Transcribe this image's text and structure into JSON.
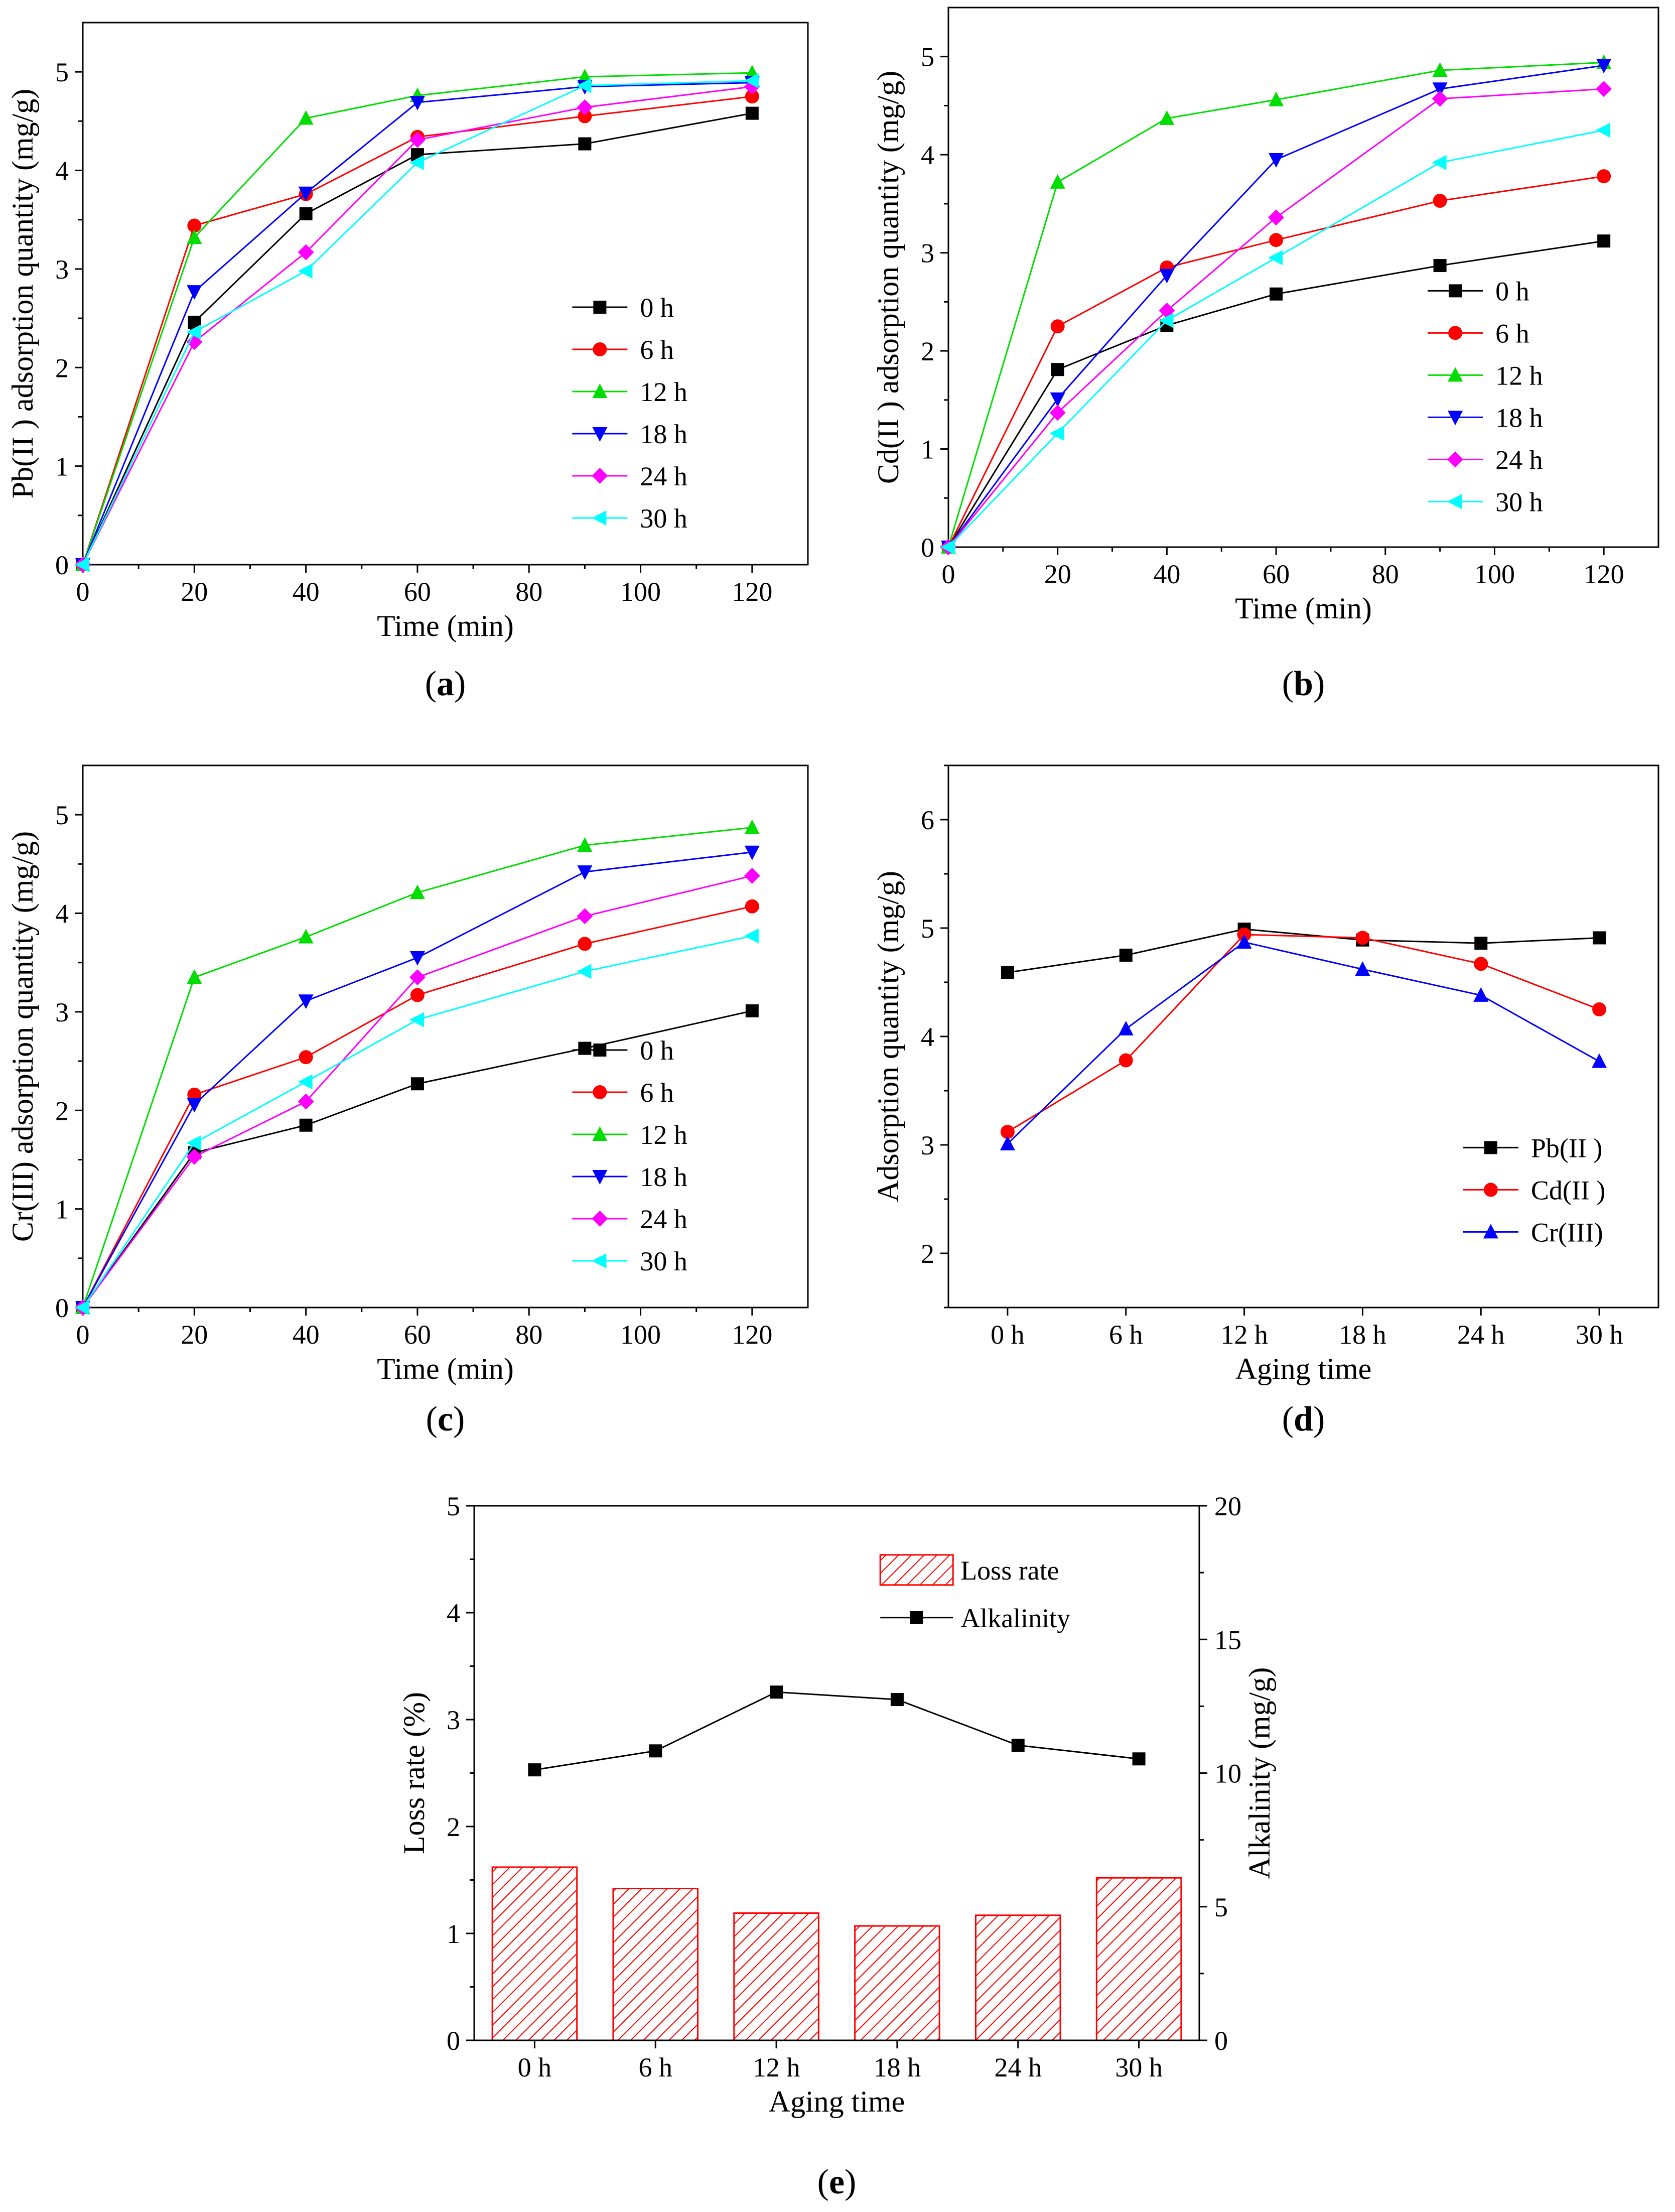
{
  "figure": {
    "captions": [
      "(a)",
      "(b)",
      "(c)",
      "(d)",
      "(e)"
    ]
  },
  "chart_data": [
    {
      "id": "a",
      "type": "line",
      "caption": "(a)",
      "xlabel": "Time (min)",
      "ylabel": "Pb(II ) adsorption quantity (mg/g)",
      "xlim": [
        0,
        130
      ],
      "ylim": [
        0,
        5.5
      ],
      "xticks": [
        0,
        20,
        40,
        60,
        80,
        100,
        120
      ],
      "yticks": [
        0,
        1,
        2,
        3,
        4,
        5
      ],
      "x": [
        0,
        20,
        40,
        60,
        90,
        120
      ],
      "legend_position": "lower-right",
      "series": [
        {
          "name": "0 h",
          "color": "#000000",
          "marker": "square",
          "values": [
            0,
            2.46,
            3.56,
            4.16,
            4.27,
            4.58
          ]
        },
        {
          "name": "6 h",
          "color": "#ff0000",
          "marker": "circle",
          "values": [
            0,
            3.44,
            3.76,
            4.34,
            4.55,
            4.75
          ]
        },
        {
          "name": "12 h",
          "color": "#00dd00",
          "marker": "triangle-up",
          "values": [
            0,
            3.32,
            4.53,
            4.76,
            4.95,
            4.99
          ]
        },
        {
          "name": "18 h",
          "color": "#0000ff",
          "marker": "triangle-down",
          "values": [
            0,
            2.77,
            3.77,
            4.69,
            4.85,
            4.89
          ]
        },
        {
          "name": "24 h",
          "color": "#ff00ff",
          "marker": "diamond",
          "values": [
            0,
            2.26,
            3.17,
            4.31,
            4.64,
            4.85
          ]
        },
        {
          "name": "30 h",
          "color": "#00ffff",
          "marker": "triangle-left",
          "values": [
            0,
            2.36,
            2.98,
            4.08,
            4.86,
            4.91
          ]
        }
      ]
    },
    {
      "id": "b",
      "type": "line",
      "caption": "(b)",
      "xlabel": "Time (min)",
      "ylabel": "Cd(II ) adsorption quantity (mg/g)",
      "xlim": [
        0,
        130
      ],
      "ylim": [
        0,
        5.5
      ],
      "xticks": [
        0,
        20,
        40,
        60,
        80,
        100,
        120
      ],
      "yticks": [
        0,
        1,
        2,
        3,
        4,
        5
      ],
      "x": [
        0,
        20,
        40,
        60,
        90,
        120
      ],
      "legend_position": "lower-right",
      "series": [
        {
          "name": "0 h",
          "color": "#000000",
          "marker": "square",
          "values": [
            0,
            1.81,
            2.26,
            2.58,
            2.87,
            3.12
          ]
        },
        {
          "name": "6 h",
          "color": "#ff0000",
          "marker": "circle",
          "values": [
            0,
            2.25,
            2.85,
            3.13,
            3.53,
            3.78
          ]
        },
        {
          "name": "12 h",
          "color": "#00dd00",
          "marker": "triangle-up",
          "values": [
            0,
            3.72,
            4.37,
            4.56,
            4.86,
            4.94
          ]
        },
        {
          "name": "18 h",
          "color": "#0000ff",
          "marker": "triangle-down",
          "values": [
            0,
            1.51,
            2.77,
            3.95,
            4.67,
            4.91
          ]
        },
        {
          "name": "24 h",
          "color": "#ff00ff",
          "marker": "diamond",
          "values": [
            0,
            1.37,
            2.41,
            3.36,
            4.57,
            4.67
          ]
        },
        {
          "name": "30 h",
          "color": "#00ffff",
          "marker": "triangle-left",
          "values": [
            0,
            1.16,
            2.31,
            2.95,
            3.92,
            4.25
          ]
        }
      ]
    },
    {
      "id": "c",
      "type": "line",
      "caption": "(c)",
      "xlabel": "Time (min)",
      "ylabel": "Cr(III) adsorption quantity (mg/g)",
      "xlim": [
        0,
        130
      ],
      "ylim": [
        0,
        5.5
      ],
      "xticks": [
        0,
        20,
        40,
        60,
        80,
        100,
        120
      ],
      "yticks": [
        0,
        1,
        2,
        3,
        4,
        5
      ],
      "x": [
        0,
        20,
        40,
        60,
        90,
        120
      ],
      "legend_position": "lower-right",
      "series": [
        {
          "name": "0 h",
          "color": "#000000",
          "marker": "square",
          "values": [
            0,
            1.57,
            1.85,
            2.27,
            2.63,
            3.01
          ]
        },
        {
          "name": "6 h",
          "color": "#ff0000",
          "marker": "circle",
          "values": [
            0,
            2.16,
            2.54,
            3.17,
            3.69,
            4.07
          ]
        },
        {
          "name": "12 h",
          "color": "#00dd00",
          "marker": "triangle-up",
          "values": [
            0,
            3.35,
            3.76,
            4.21,
            4.69,
            4.87
          ]
        },
        {
          "name": "18 h",
          "color": "#0000ff",
          "marker": "triangle-down",
          "values": [
            0,
            2.06,
            3.11,
            3.55,
            4.42,
            4.62
          ]
        },
        {
          "name": "24 h",
          "color": "#ff00ff",
          "marker": "diamond",
          "values": [
            0,
            1.53,
            2.09,
            3.35,
            3.97,
            4.38
          ]
        },
        {
          "name": "30 h",
          "color": "#00ffff",
          "marker": "triangle-left",
          "values": [
            0,
            1.67,
            2.29,
            2.92,
            3.41,
            3.77
          ]
        }
      ]
    },
    {
      "id": "d",
      "type": "line",
      "caption": "(d)",
      "xlabel": "Aging time",
      "ylabel": "Adsorption quantity (mg/g)",
      "categories": [
        "0 h",
        "6 h",
        "12 h",
        "18 h",
        "24 h",
        "30 h"
      ],
      "ylim": [
        1.5,
        6.5
      ],
      "yticks": [
        2,
        3,
        4,
        5,
        6
      ],
      "legend_position": "lower-right",
      "series": [
        {
          "name": "Pb(II )",
          "color": "#000000",
          "marker": "square",
          "values": [
            4.59,
            4.75,
            4.99,
            4.89,
            4.86,
            4.91
          ]
        },
        {
          "name": "Cd(II )",
          "color": "#ff0000",
          "marker": "circle",
          "values": [
            3.12,
            3.78,
            4.94,
            4.91,
            4.67,
            4.25
          ]
        },
        {
          "name": "Cr(III)",
          "color": "#0000ff",
          "marker": "triangle-up",
          "values": [
            3.01,
            4.07,
            4.87,
            4.62,
            4.38,
            3.77
          ]
        }
      ]
    },
    {
      "id": "e",
      "type": "bar",
      "caption": "(e)",
      "xlabel": "Aging time",
      "ylabel": "Loss rate (%)",
      "ylabel_right": "Alkalinity (mg/g)",
      "categories": [
        "0 h",
        "6 h",
        "12 h",
        "18 h",
        "24 h",
        "30 h"
      ],
      "ylim": [
        0,
        5
      ],
      "yticks": [
        0,
        1,
        2,
        3,
        4,
        5
      ],
      "ylim_right": [
        0,
        20
      ],
      "yticks_right": [
        0,
        5,
        10,
        15,
        20
      ],
      "legend_position": "top-right",
      "series": [
        {
          "name": "Loss rate",
          "kind": "bar",
          "axis": "left",
          "color": "#ff0000",
          "values": [
            1.62,
            1.42,
            1.19,
            1.07,
            1.17,
            1.52
          ]
        },
        {
          "name": "Alkalinity",
          "kind": "line",
          "axis": "right",
          "color": "#000000",
          "marker": "square",
          "values": [
            10.12,
            10.83,
            13.03,
            12.75,
            11.04,
            10.53
          ]
        }
      ]
    }
  ]
}
